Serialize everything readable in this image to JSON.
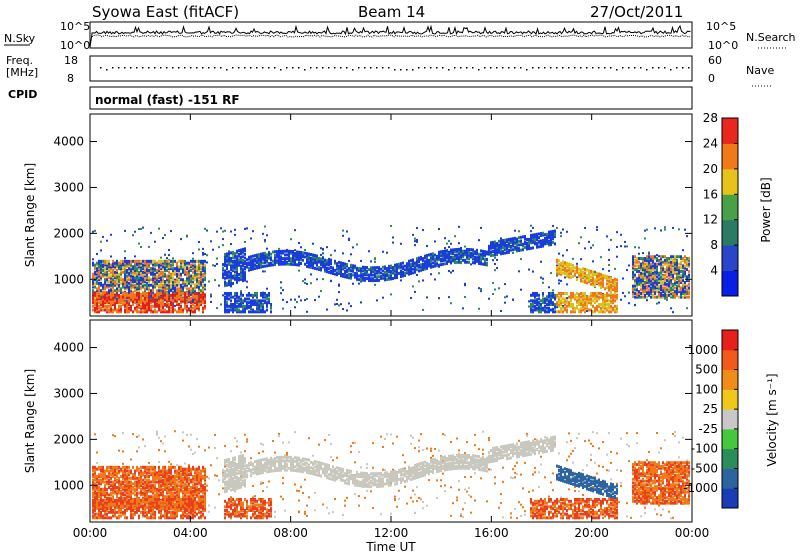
{
  "header": {
    "title": "Syowa East (fitACF)",
    "beam": "Beam 14",
    "date": "27/Oct/2011"
  },
  "top_panels": {
    "nsky_label": "N.Sky",
    "nsky_ticks": [
      "10^5",
      "10^0"
    ],
    "nsearch_label": "N.Search",
    "nsearch_ticks": [
      "10^5",
      "10^0"
    ],
    "freq_label_1": "Freq.",
    "freq_label_2": "[MHz]",
    "freq_ticks": [
      "18",
      "8"
    ],
    "nave_label": "Nave",
    "nave_ticks": [
      "60",
      "0"
    ],
    "cpid_label": "CPID",
    "cpid_text": "normal (fast) -151 RF"
  },
  "chart_data": [
    {
      "type": "heatmap",
      "name": "power",
      "ylabel": "Slant Range [km]",
      "yticks": [
        1000,
        2000,
        3000,
        4000
      ],
      "ylim": [
        200,
        4600
      ],
      "xlim_hours": [
        0,
        24
      ],
      "colorbar_label": "Power [dB]",
      "colorbar_ticks": [
        "4",
        "8",
        "12",
        "16",
        "20",
        "24",
        "28"
      ],
      "colorbar_colors": [
        "#0a1ee6",
        "#2a46c8",
        "#2c7a64",
        "#4aa046",
        "#e8c21c",
        "#f07a1a",
        "#e8281e"
      ],
      "colors": {
        "low": "#1a3cdc",
        "mid_low": "#2c8a5a",
        "mid": "#d9c21c",
        "high": "#f0781a",
        "max": "#e0201c"
      }
    },
    {
      "type": "heatmap",
      "name": "velocity",
      "ylabel": "Slant Range [km]",
      "yticks": [
        1000,
        2000,
        3000,
        4000
      ],
      "ylim": [
        200,
        4600
      ],
      "xlim_hours": [
        0,
        24
      ],
      "colorbar_label": "Velocity [m s⁻¹]",
      "colorbar_ticks": [
        "1000",
        "500",
        "100",
        "25",
        "-25",
        "-100",
        "-500",
        "-1000"
      ],
      "colorbar_colors": [
        "#1a3cb4",
        "#2c64a0",
        "#2c8c5a",
        "#46c83c",
        "#c8c8c8",
        "#f0c81c",
        "#f08c1a",
        "#f05a1a",
        "#e8201c"
      ],
      "colors": {
        "ground": "#c8c8be",
        "toward": "#f07a1a",
        "toward_strong": "#e8401c",
        "away": "#2c64a0"
      }
    }
  ],
  "x_axis": {
    "ticks": [
      "00:00",
      "04:00",
      "08:00",
      "12:00",
      "16:00",
      "20:00",
      "00:00"
    ],
    "label": "Time UT"
  }
}
